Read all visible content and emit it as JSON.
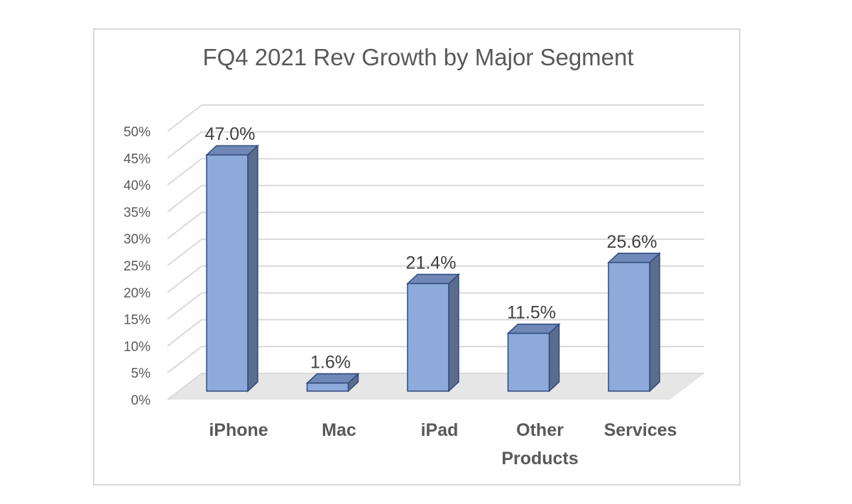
{
  "chart_data": {
    "type": "bar",
    "title": "FQ4 2021 Rev Growth by Major Segment",
    "categories": [
      "iPhone",
      "Mac",
      "iPad",
      "Other Products",
      "Services"
    ],
    "category_lines": [
      [
        "iPhone"
      ],
      [
        "Mac"
      ],
      [
        "iPad"
      ],
      [
        "Other",
        "Products"
      ],
      [
        "Services"
      ]
    ],
    "values": [
      47.0,
      1.6,
      21.4,
      11.5,
      25.6
    ],
    "data_labels": [
      "47.0%",
      "1.6%",
      "21.4%",
      "11.5%",
      "25.6%"
    ],
    "xlabel": "",
    "ylabel": "",
    "ylim": [
      0,
      50
    ],
    "yticks": [
      0,
      5,
      10,
      15,
      20,
      25,
      30,
      35,
      40,
      45,
      50
    ],
    "ytick_labels": [
      "0%",
      "5%",
      "10%",
      "15%",
      "20%",
      "25%",
      "30%",
      "35%",
      "40%",
      "45%",
      "50%"
    ],
    "style": "3d-column",
    "grid": true,
    "legend": "none",
    "colors": {
      "bar_front": "#8eaadb",
      "bar_side": "#5a6d8f",
      "bar_top": "#6f88b8",
      "bar_edge": "#2f4b7c",
      "gridline": "#d9d9d9",
      "floor": "#e6e6e6",
      "axis_text": "#595959"
    }
  }
}
